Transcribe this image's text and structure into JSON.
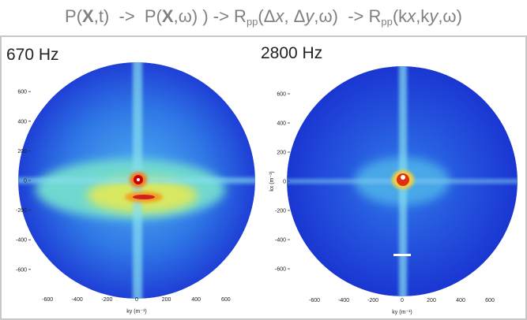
{
  "title": {
    "parts": [
      "P(",
      "X",
      ",t)  ->  P(",
      "X",
      ",ω) ) -> R",
      "pp",
      "(Δ",
      "x",
      ", Δ",
      "y",
      ",ω)  -> R",
      "pp",
      "(k",
      "x",
      ",k",
      "y",
      ",ω)"
    ]
  },
  "panels": [
    {
      "label": "670 Hz",
      "yticks": [
        600,
        400,
        200,
        0,
        -200,
        -400,
        -600
      ],
      "xticks": [
        -600,
        -400,
        -200,
        0,
        200,
        400,
        600
      ],
      "xlabel": "ky (m⁻¹)"
    },
    {
      "label": "2800 Hz",
      "yticks": [
        600,
        400,
        200,
        0,
        -200,
        -400,
        -600
      ],
      "xticks": [
        -600,
        -400,
        -200,
        0,
        200,
        400,
        600
      ],
      "xlabel": "ky (m⁻¹)",
      "ylabel": "kx (m⁻¹)"
    }
  ]
}
